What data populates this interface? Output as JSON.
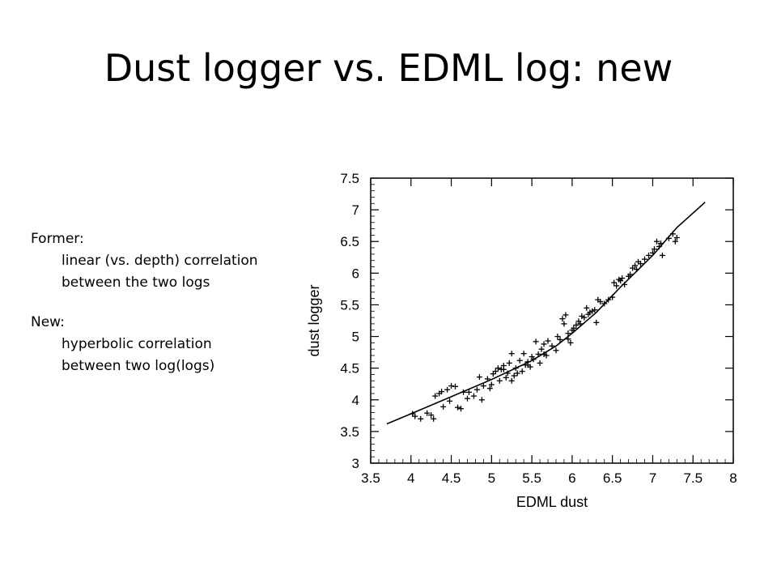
{
  "slide": {
    "title": "Dust logger vs. EDML log: new"
  },
  "notes": {
    "former_heading": "Former:",
    "former_lines": [
      "linear (vs. depth) correlation",
      "between the two logs"
    ],
    "new_heading": "New:",
    "new_lines": [
      "hyperbolic correlation",
      "between two log(logs)"
    ]
  },
  "chart_data": {
    "type": "scatter",
    "title": "",
    "xlabel": "EDML dust",
    "ylabel": "dust logger",
    "xlim": [
      3.5,
      8
    ],
    "ylim": [
      3,
      7.5
    ],
    "x_ticks": [
      "3.5",
      "4",
      "4.5",
      "5",
      "5.5",
      "6",
      "6.5",
      "7",
      "7.5",
      "8"
    ],
    "y_ticks": [
      "3",
      "3.5",
      "4",
      "4.5",
      "5",
      "5.5",
      "6",
      "6.5",
      "7",
      "7.5"
    ],
    "grid": false,
    "marker": "+",
    "color": "#000000",
    "points": [
      [
        4.02,
        3.78
      ],
      [
        4.05,
        3.74
      ],
      [
        4.12,
        3.7
      ],
      [
        4.2,
        3.79
      ],
      [
        4.25,
        3.76
      ],
      [
        4.28,
        3.7
      ],
      [
        4.3,
        4.06
      ],
      [
        4.35,
        4.1
      ],
      [
        4.38,
        4.13
      ],
      [
        4.4,
        3.89
      ],
      [
        4.45,
        4.16
      ],
      [
        4.48,
        3.98
      ],
      [
        4.5,
        4.22
      ],
      [
        4.55,
        4.21
      ],
      [
        4.58,
        3.88
      ],
      [
        4.62,
        3.86
      ],
      [
        4.7,
        4.02
      ],
      [
        4.72,
        4.12
      ],
      [
        4.78,
        4.06
      ],
      [
        4.82,
        4.16
      ],
      [
        4.88,
        4.0
      ],
      [
        4.9,
        4.22
      ],
      [
        4.95,
        4.33
      ],
      [
        4.98,
        4.18
      ],
      [
        5.0,
        4.24
      ],
      [
        5.02,
        4.41
      ],
      [
        5.05,
        4.45
      ],
      [
        5.08,
        4.5
      ],
      [
        5.1,
        4.3
      ],
      [
        5.12,
        4.48
      ],
      [
        5.15,
        4.54
      ],
      [
        5.18,
        4.35
      ],
      [
        5.2,
        4.42
      ],
      [
        5.22,
        4.58
      ],
      [
        5.25,
        4.3
      ],
      [
        5.28,
        4.38
      ],
      [
        5.3,
        4.5
      ],
      [
        5.32,
        4.42
      ],
      [
        5.35,
        4.62
      ],
      [
        5.38,
        4.45
      ],
      [
        5.4,
        4.73
      ],
      [
        5.42,
        4.55
      ],
      [
        5.45,
        4.6
      ],
      [
        5.48,
        4.52
      ],
      [
        5.5,
        4.68
      ],
      [
        5.52,
        4.64
      ],
      [
        5.55,
        4.92
      ],
      [
        5.58,
        4.72
      ],
      [
        5.6,
        4.58
      ],
      [
        5.62,
        4.8
      ],
      [
        5.65,
        4.88
      ],
      [
        5.68,
        4.7
      ],
      [
        5.7,
        4.93
      ],
      [
        5.75,
        4.85
      ],
      [
        5.8,
        4.78
      ],
      [
        5.82,
        5.0
      ],
      [
        5.85,
        4.95
      ],
      [
        5.88,
        5.28
      ],
      [
        5.9,
        5.2
      ],
      [
        5.92,
        5.34
      ],
      [
        5.95,
        4.96
      ],
      [
        5.98,
        4.9
      ],
      [
        6.0,
        5.1
      ],
      [
        6.02,
        5.13
      ],
      [
        6.05,
        5.18
      ],
      [
        6.08,
        5.24
      ],
      [
        6.1,
        5.2
      ],
      [
        6.12,
        5.32
      ],
      [
        6.15,
        5.3
      ],
      [
        6.18,
        5.45
      ],
      [
        6.2,
        5.35
      ],
      [
        6.22,
        5.38
      ],
      [
        6.25,
        5.4
      ],
      [
        6.3,
        5.22
      ],
      [
        6.32,
        5.58
      ],
      [
        6.35,
        5.55
      ],
      [
        6.4,
        5.52
      ],
      [
        6.45,
        5.58
      ],
      [
        6.5,
        5.62
      ],
      [
        6.52,
        5.85
      ],
      [
        6.55,
        5.8
      ],
      [
        6.58,
        5.9
      ],
      [
        6.6,
        5.88
      ],
      [
        6.65,
        5.82
      ],
      [
        6.7,
        5.95
      ],
      [
        6.72,
        5.98
      ],
      [
        6.75,
        6.08
      ],
      [
        6.78,
        6.12
      ],
      [
        6.8,
        6.06
      ],
      [
        6.82,
        6.18
      ],
      [
        6.85,
        6.15
      ],
      [
        6.9,
        6.22
      ],
      [
        6.95,
        6.28
      ],
      [
        7.0,
        6.32
      ],
      [
        7.02,
        6.38
      ],
      [
        7.05,
        6.5
      ],
      [
        7.08,
        6.42
      ],
      [
        7.1,
        6.47
      ],
      [
        7.12,
        6.28
      ],
      [
        7.2,
        6.55
      ],
      [
        7.25,
        6.62
      ],
      [
        7.28,
        6.5
      ],
      [
        7.3,
        6.56
      ],
      [
        5.25,
        4.73
      ],
      [
        5.45,
        4.55
      ],
      [
        5.65,
        4.72
      ],
      [
        5.95,
        5.05
      ],
      [
        6.28,
        5.42
      ],
      [
        6.62,
        5.92
      ],
      [
        4.85,
        4.36
      ],
      [
        5.15,
        4.48
      ],
      [
        4.65,
        4.12
      ]
    ],
    "fit_curve": [
      [
        3.7,
        3.62
      ],
      [
        4.0,
        3.78
      ],
      [
        4.5,
        4.05
      ],
      [
        5.0,
        4.32
      ],
      [
        5.5,
        4.62
      ],
      [
        5.8,
        4.85
      ],
      [
        6.0,
        5.05
      ],
      [
        6.3,
        5.38
      ],
      [
        6.6,
        5.78
      ],
      [
        7.0,
        6.28
      ],
      [
        7.3,
        6.72
      ],
      [
        7.65,
        7.12
      ]
    ]
  }
}
